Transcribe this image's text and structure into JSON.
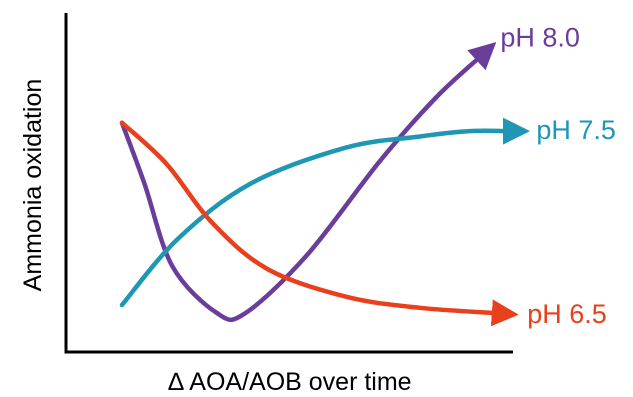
{
  "chart_data": {
    "type": "line",
    "title": "",
    "xlabel": "∆ AOA/AOB over time",
    "ylabel": "Ammonia oxidation",
    "grid": false,
    "xlim": [
      0,
      1
    ],
    "ylim": [
      0,
      1
    ],
    "series": [
      {
        "name": "pH 8.0",
        "color": "#6a3d9a",
        "points": [
          [
            0.1,
            0.7
          ],
          [
            0.14,
            0.48
          ],
          [
            0.19,
            0.18
          ],
          [
            0.27,
            0.01
          ],
          [
            0.32,
            0.01
          ],
          [
            0.43,
            0.22
          ],
          [
            0.56,
            0.56
          ],
          [
            0.66,
            0.79
          ],
          [
            0.74,
            0.94
          ]
        ]
      },
      {
        "name": "pH 7.5",
        "color": "#1f96b4",
        "points": [
          [
            0.1,
            0.04
          ],
          [
            0.2,
            0.28
          ],
          [
            0.33,
            0.48
          ],
          [
            0.5,
            0.61
          ],
          [
            0.63,
            0.65
          ],
          [
            0.72,
            0.67
          ],
          [
            0.79,
            0.67
          ]
        ]
      },
      {
        "name": "pH 6.5",
        "color": "#e8401c",
        "points": [
          [
            0.1,
            0.7
          ],
          [
            0.18,
            0.55
          ],
          [
            0.26,
            0.34
          ],
          [
            0.36,
            0.17
          ],
          [
            0.5,
            0.07
          ],
          [
            0.63,
            0.03
          ],
          [
            0.77,
            0.01
          ]
        ]
      }
    ]
  }
}
